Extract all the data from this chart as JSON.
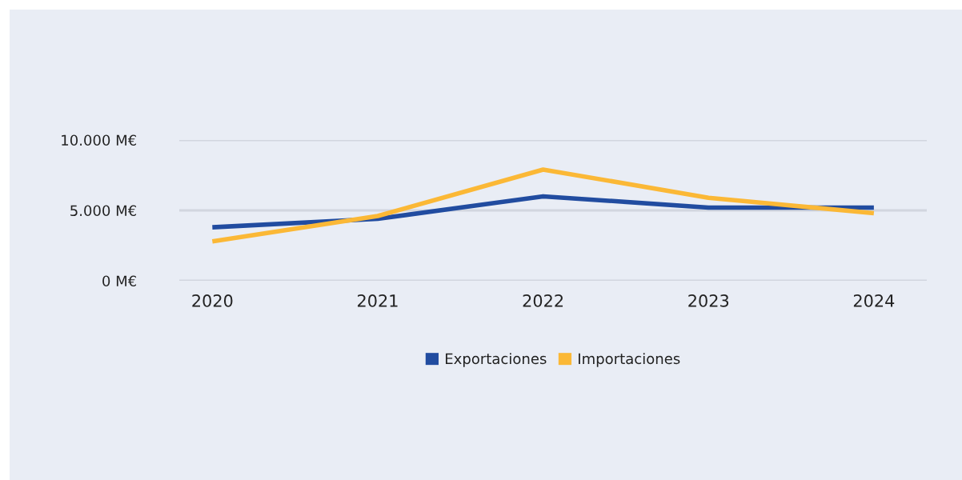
{
  "chart_data": {
    "type": "line",
    "categories": [
      "2020",
      "2021",
      "2022",
      "2023",
      "2024"
    ],
    "series": [
      {
        "name": "Exportaciones",
        "color": "#214ca0",
        "values": [
          3800,
          4400,
          6000,
          5200,
          5200
        ]
      },
      {
        "name": "Importaciones",
        "color": "#fbb836",
        "values": [
          2800,
          4600,
          7900,
          5900,
          4800
        ]
      }
    ],
    "ylim": [
      0,
      10000
    ],
    "yticks": [
      {
        "value": 0,
        "label": "0 M€"
      },
      {
        "value": 5000,
        "label": "5.000 M€"
      },
      {
        "value": 10000,
        "label": "10.000 M€"
      }
    ],
    "grid": "y",
    "legend": "bottom",
    "marker": "none",
    "line_style": "solid"
  }
}
